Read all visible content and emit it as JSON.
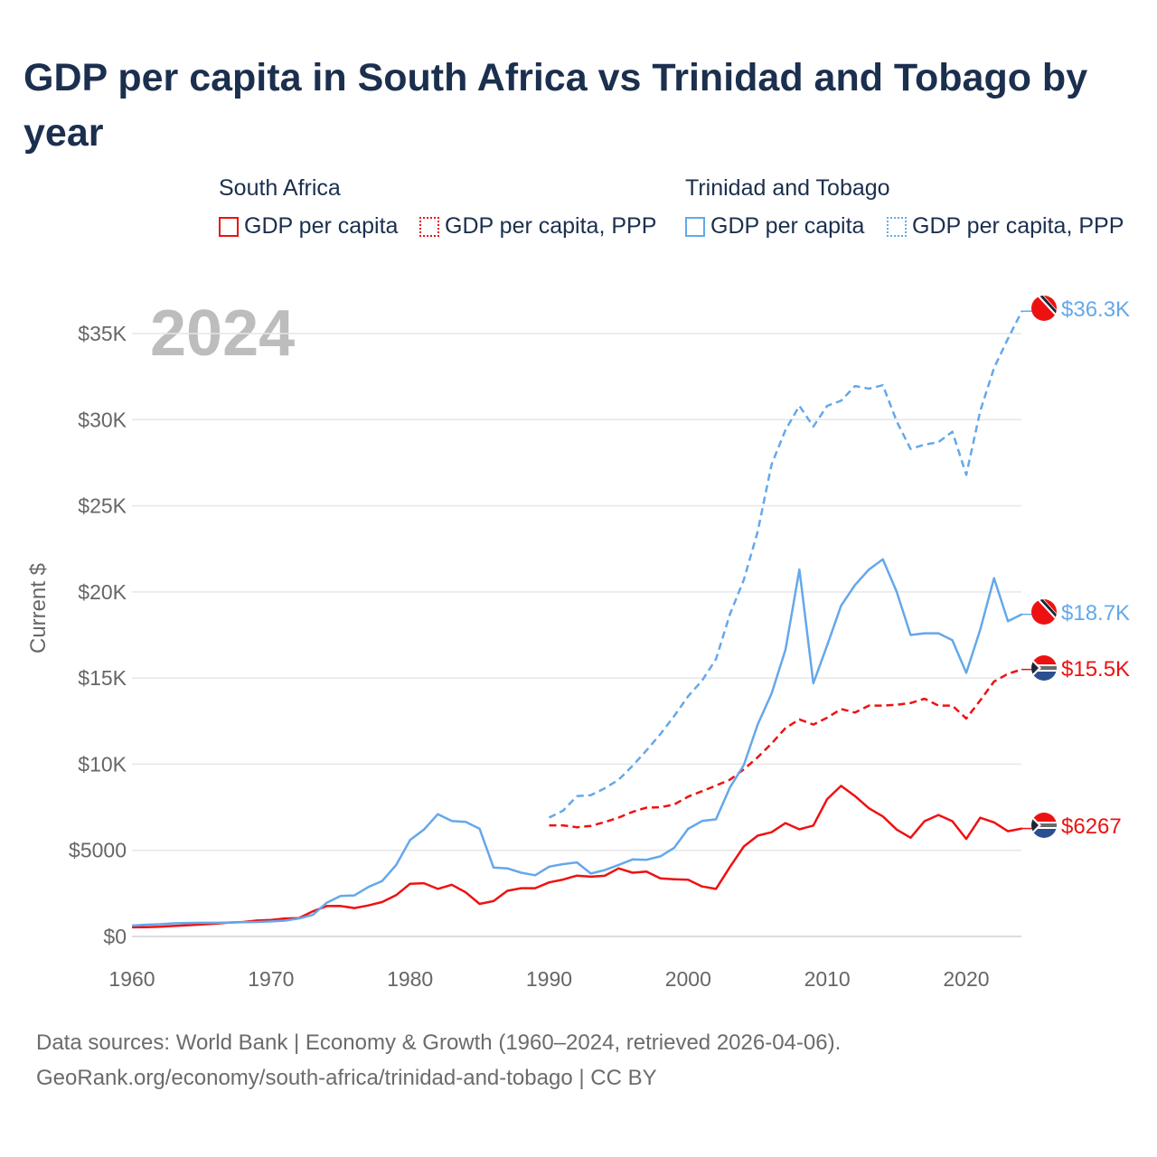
{
  "title": "GDP per capita in South Africa vs Trinidad and Tobago by year",
  "legend": {
    "groups": [
      {
        "name": "South Africa",
        "items": [
          "GDP per capita",
          "GDP per capita, PPP"
        ]
      },
      {
        "name": "Trinidad and Tobago",
        "items": [
          "GDP per capita",
          "GDP per capita, PPP"
        ]
      }
    ]
  },
  "year_label": "2024",
  "footer": {
    "line1": "Data sources: World Bank | Economy & Growth (1960–2024, retrieved 2026-04-06).",
    "line2": "GeoRank.org/economy/south-africa/trinidad-and-tobago | CC BY"
  },
  "colors": {
    "south_africa": "#ee1111",
    "trinidad": "#64a8ea",
    "grid": "#e6e6e6",
    "axis_text": "#666666"
  },
  "chart_data": {
    "type": "line",
    "title": "GDP per capita in South Africa vs Trinidad and Tobago by year",
    "xlabel": "",
    "ylabel": "Current $",
    "xlim": [
      1960,
      2024
    ],
    "ylim": [
      0,
      37000
    ],
    "xticks": [
      1960,
      1970,
      1980,
      1990,
      2000,
      2010,
      2020
    ],
    "xtick_labels": [
      "1960",
      "1970",
      "1980",
      "1990",
      "2000",
      "2010",
      "2020"
    ],
    "yticks": [
      0,
      5000,
      10000,
      15000,
      20000,
      25000,
      30000,
      35000
    ],
    "ytick_labels": [
      "$0",
      "$5000",
      "$10K",
      "$15K",
      "$20K",
      "$25K",
      "$30K",
      "$35K"
    ],
    "grid": true,
    "legend_position": "top",
    "series": [
      {
        "name": "South Africa GDP per capita",
        "country": "South Africa",
        "style": "solid",
        "color": "#ee1111",
        "start": 1960,
        "end_label": "$6267",
        "values": [
          529,
          543,
          561,
          608,
          652,
          698,
          742,
          808,
          838,
          924,
          957,
          1046,
          1066,
          1452,
          1761,
          1768,
          1647,
          1800,
          2000,
          2400,
          3060,
          3090,
          2760,
          3000,
          2560,
          1890,
          2050,
          2650,
          2800,
          2800,
          3140,
          3300,
          3530,
          3470,
          3520,
          3950,
          3700,
          3770,
          3370,
          3320,
          3290,
          2900,
          2760,
          4030,
          5220,
          5850,
          6050,
          6580,
          6220,
          6440,
          7970,
          8740,
          8150,
          7440,
          6970,
          6200,
          5730,
          6690,
          7050,
          6690,
          5660,
          6890,
          6620,
          6110,
          6267
        ]
      },
      {
        "name": "South Africa GDP per capita, PPP",
        "country": "South Africa",
        "style": "dashed",
        "color": "#ee1111",
        "start": 1990,
        "end_label": "$15.5K",
        "values": [
          6450,
          6450,
          6340,
          6420,
          6640,
          6900,
          7230,
          7480,
          7500,
          7660,
          8120,
          8430,
          8760,
          9100,
          9700,
          10400,
          11200,
          12100,
          12600,
          12300,
          12700,
          13200,
          13000,
          13400,
          13400,
          13450,
          13550,
          13800,
          13400,
          13400,
          12650,
          13700,
          14800,
          15250,
          15500
        ]
      },
      {
        "name": "Trinidad and Tobago GDP per capita",
        "country": "Trinidad and Tobago",
        "style": "solid",
        "color": "#64a8ea",
        "start": 1960,
        "end_label": "$18.7K",
        "values": [
          630,
          680,
          710,
          760,
          780,
          790,
          790,
          810,
          830,
          840,
          870,
          920,
          1040,
          1250,
          1950,
          2350,
          2380,
          2870,
          3220,
          4150,
          5600,
          6200,
          7100,
          6700,
          6650,
          6250,
          4000,
          3950,
          3700,
          3550,
          4050,
          4200,
          4300,
          3650,
          3850,
          4150,
          4470,
          4450,
          4650,
          5150,
          6250,
          6700,
          6800,
          8650,
          9950,
          12300,
          14100,
          16650,
          21300,
          14700,
          16900,
          19200,
          20400,
          21300,
          21900,
          20000,
          17500,
          17600,
          17600,
          17200,
          15300,
          17800,
          20800,
          18300,
          18700
        ]
      },
      {
        "name": "Trinidad and Tobago GDP per capita, PPP",
        "country": "Trinidad and Tobago",
        "style": "dashed",
        "color": "#64a8ea",
        "start": 1990,
        "end_label": "$36.3K",
        "values": [
          6900,
          7300,
          8150,
          8200,
          8600,
          9100,
          9900,
          10800,
          11750,
          12800,
          13950,
          14850,
          16100,
          18700,
          20700,
          23500,
          27400,
          29400,
          30800,
          29600,
          30800,
          31100,
          31950,
          31800,
          32000,
          29900,
          28300,
          28550,
          28700,
          29300,
          26800,
          30500,
          33000,
          34700,
          36300
        ]
      }
    ]
  }
}
